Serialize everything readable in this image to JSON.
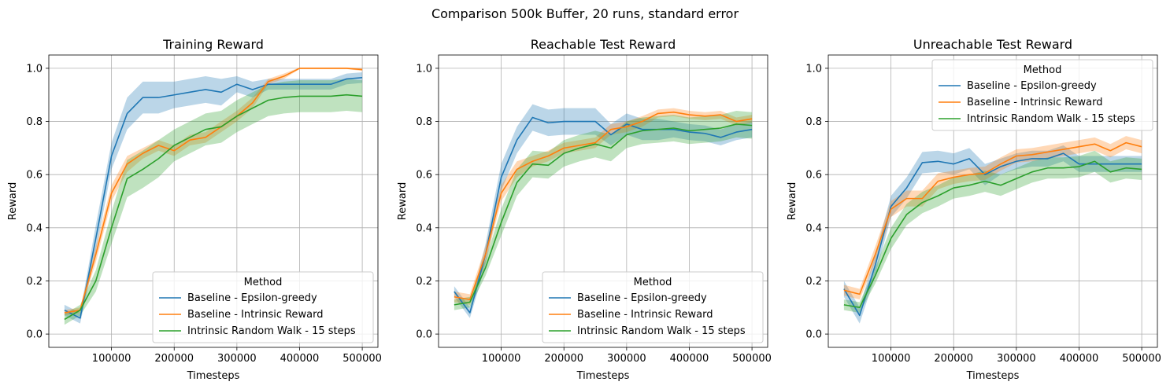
{
  "suptitle": "Comparison 500k Buffer, 20 runs, standard error",
  "colors": {
    "blue": "#1f77b4",
    "orange": "#ff7f0e",
    "green": "#2ca02c"
  },
  "chart_data": [
    {
      "type": "line",
      "title": "Training Reward",
      "xlabel": "Timesteps",
      "ylabel": "Reward",
      "xticks": [
        "100000",
        "200000",
        "300000",
        "400000",
        "500000"
      ],
      "yticks": [
        "0.0",
        "0.2",
        "0.4",
        "0.6",
        "0.8",
        "1.0"
      ],
      "xlim": [
        0,
        525000
      ],
      "ylim": [
        -0.05,
        1.05
      ],
      "grid": true,
      "legend": {
        "title": "Method",
        "position": "lower-right"
      },
      "x": [
        25000,
        50000,
        75000,
        100000,
        125000,
        150000,
        175000,
        200000,
        225000,
        250000,
        275000,
        300000,
        325000,
        350000,
        375000,
        400000,
        425000,
        450000,
        475000,
        500000
      ],
      "series": [
        {
          "name": "Baseline - Epsilon-greedy",
          "color": "#1f77b4",
          "values": [
            0.09,
            0.06,
            0.36,
            0.67,
            0.83,
            0.89,
            0.89,
            0.9,
            0.91,
            0.92,
            0.91,
            0.94,
            0.92,
            0.94,
            0.94,
            0.94,
            0.94,
            0.94,
            0.96,
            0.965
          ],
          "err": [
            0.02,
            0.02,
            0.05,
            0.05,
            0.06,
            0.06,
            0.06,
            0.05,
            0.05,
            0.05,
            0.05,
            0.03,
            0.03,
            0.02,
            0.02,
            0.02,
            0.02,
            0.02,
            0.02,
            0.02
          ]
        },
        {
          "name": "Baseline - Intrinsic Reward",
          "color": "#ff7f0e",
          "values": [
            0.08,
            0.09,
            0.3,
            0.53,
            0.64,
            0.68,
            0.71,
            0.69,
            0.73,
            0.74,
            0.78,
            0.82,
            0.87,
            0.95,
            0.97,
            1.0,
            1.0,
            1.0,
            1.0,
            0.995
          ],
          "err": [
            0.01,
            0.01,
            0.03,
            0.03,
            0.03,
            0.02,
            0.02,
            0.02,
            0.02,
            0.02,
            0.02,
            0.02,
            0.02,
            0.01,
            0.01,
            0.003,
            0.003,
            0.003,
            0.003,
            0.005
          ]
        },
        {
          "name": "Intrinsic Random Walk - 15 steps",
          "color": "#2ca02c",
          "values": [
            0.055,
            0.09,
            0.2,
            0.4,
            0.585,
            0.62,
            0.66,
            0.71,
            0.74,
            0.77,
            0.78,
            0.82,
            0.85,
            0.88,
            0.89,
            0.895,
            0.895,
            0.895,
            0.9,
            0.895
          ],
          "err": [
            0.02,
            0.02,
            0.04,
            0.06,
            0.07,
            0.07,
            0.07,
            0.06,
            0.06,
            0.06,
            0.06,
            0.06,
            0.06,
            0.06,
            0.06,
            0.06,
            0.06,
            0.06,
            0.06,
            0.06
          ]
        }
      ]
    },
    {
      "type": "line",
      "title": "Reachable Test Reward",
      "xlabel": "Timesteps",
      "ylabel": "Reward",
      "xticks": [
        "100000",
        "200000",
        "300000",
        "400000",
        "500000"
      ],
      "yticks": [
        "0.0",
        "0.2",
        "0.4",
        "0.6",
        "0.8",
        "1.0"
      ],
      "xlim": [
        0,
        525000
      ],
      "ylim": [
        -0.05,
        1.05
      ],
      "grid": true,
      "legend": {
        "title": "Method",
        "position": "lower-right"
      },
      "x": [
        25000,
        50000,
        75000,
        100000,
        125000,
        150000,
        175000,
        200000,
        225000,
        250000,
        275000,
        300000,
        325000,
        350000,
        375000,
        400000,
        425000,
        450000,
        475000,
        500000
      ],
      "series": [
        {
          "name": "Baseline - Epsilon-greedy",
          "color": "#1f77b4",
          "values": [
            0.16,
            0.08,
            0.3,
            0.59,
            0.73,
            0.815,
            0.795,
            0.8,
            0.8,
            0.8,
            0.75,
            0.79,
            0.77,
            0.77,
            0.77,
            0.76,
            0.755,
            0.74,
            0.76,
            0.77
          ],
          "err": [
            0.02,
            0.02,
            0.04,
            0.05,
            0.05,
            0.05,
            0.05,
            0.05,
            0.05,
            0.05,
            0.04,
            0.04,
            0.04,
            0.04,
            0.03,
            0.03,
            0.03,
            0.03,
            0.03,
            0.03
          ]
        },
        {
          "name": "Baseline - Intrinsic Reward",
          "color": "#ff7f0e",
          "values": [
            0.14,
            0.13,
            0.3,
            0.53,
            0.62,
            0.65,
            0.67,
            0.7,
            0.71,
            0.72,
            0.77,
            0.78,
            0.8,
            0.83,
            0.835,
            0.825,
            0.82,
            0.825,
            0.8,
            0.81
          ],
          "err": [
            0.02,
            0.02,
            0.03,
            0.03,
            0.03,
            0.02,
            0.02,
            0.02,
            0.02,
            0.02,
            0.02,
            0.02,
            0.02,
            0.015,
            0.015,
            0.015,
            0.015,
            0.015,
            0.015,
            0.015
          ]
        },
        {
          "name": "Intrinsic Random Walk - 15 steps",
          "color": "#2ca02c",
          "values": [
            0.11,
            0.12,
            0.25,
            0.42,
            0.57,
            0.64,
            0.635,
            0.68,
            0.7,
            0.715,
            0.7,
            0.75,
            0.765,
            0.77,
            0.775,
            0.765,
            0.77,
            0.775,
            0.79,
            0.785
          ],
          "err": [
            0.02,
            0.02,
            0.03,
            0.05,
            0.05,
            0.05,
            0.05,
            0.05,
            0.05,
            0.05,
            0.05,
            0.05,
            0.05,
            0.05,
            0.05,
            0.05,
            0.05,
            0.05,
            0.05,
            0.05
          ]
        }
      ]
    },
    {
      "type": "line",
      "title": "Unreachable Test Reward",
      "xlabel": "Timesteps",
      "ylabel": "Reward",
      "xticks": [
        "100000",
        "200000",
        "300000",
        "400000",
        "500000"
      ],
      "yticks": [
        "0.0",
        "0.2",
        "0.4",
        "0.6",
        "0.8",
        "1.0"
      ],
      "xlim": [
        0,
        525000
      ],
      "ylim": [
        -0.05,
        1.05
      ],
      "grid": true,
      "legend": {
        "title": "Method",
        "position": "upper-right"
      },
      "x": [
        25000,
        50000,
        75000,
        100000,
        125000,
        150000,
        175000,
        200000,
        225000,
        250000,
        275000,
        300000,
        325000,
        350000,
        375000,
        400000,
        425000,
        450000,
        475000,
        500000
      ],
      "series": [
        {
          "name": "Baseline - Epsilon-greedy",
          "color": "#1f77b4",
          "values": [
            0.17,
            0.07,
            0.26,
            0.48,
            0.55,
            0.645,
            0.65,
            0.64,
            0.66,
            0.6,
            0.63,
            0.65,
            0.66,
            0.66,
            0.68,
            0.64,
            0.64,
            0.64,
            0.64,
            0.64
          ],
          "err": [
            0.03,
            0.03,
            0.04,
            0.04,
            0.04,
            0.04,
            0.04,
            0.04,
            0.04,
            0.04,
            0.03,
            0.03,
            0.03,
            0.03,
            0.03,
            0.03,
            0.03,
            0.03,
            0.03,
            0.03
          ]
        },
        {
          "name": "Baseline - Intrinsic Reward",
          "color": "#ff7f0e",
          "values": [
            0.165,
            0.15,
            0.3,
            0.47,
            0.51,
            0.51,
            0.575,
            0.59,
            0.6,
            0.605,
            0.64,
            0.67,
            0.675,
            0.685,
            0.695,
            0.705,
            0.715,
            0.69,
            0.72,
            0.705
          ],
          "err": [
            0.02,
            0.02,
            0.03,
            0.03,
            0.03,
            0.03,
            0.03,
            0.025,
            0.025,
            0.025,
            0.025,
            0.025,
            0.025,
            0.025,
            0.025,
            0.025,
            0.025,
            0.025,
            0.025,
            0.025
          ]
        },
        {
          "name": "Intrinsic Random Walk - 15 steps",
          "color": "#2ca02c",
          "values": [
            0.11,
            0.1,
            0.22,
            0.36,
            0.45,
            0.495,
            0.52,
            0.55,
            0.56,
            0.575,
            0.56,
            0.585,
            0.61,
            0.625,
            0.625,
            0.63,
            0.65,
            0.61,
            0.625,
            0.62
          ],
          "err": [
            0.02,
            0.02,
            0.03,
            0.04,
            0.04,
            0.04,
            0.04,
            0.04,
            0.04,
            0.04,
            0.04,
            0.04,
            0.04,
            0.04,
            0.04,
            0.04,
            0.04,
            0.04,
            0.04,
            0.04
          ]
        }
      ]
    }
  ]
}
